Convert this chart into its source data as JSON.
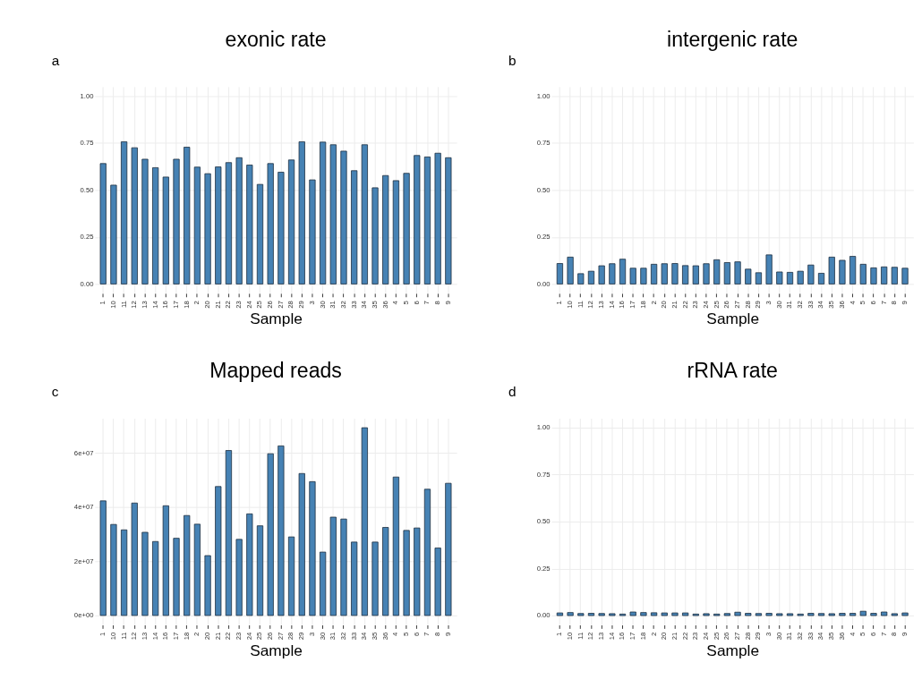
{
  "chart_data": [
    {
      "type": "bar",
      "title": "exonic rate",
      "xlabel": "Sample",
      "annotations": [
        "a"
      ],
      "grid": true,
      "color": "#4682b4",
      "categories": [
        "1",
        "10",
        "11",
        "12",
        "13",
        "14",
        "16",
        "17",
        "18",
        "2",
        "20",
        "21",
        "22",
        "23",
        "24",
        "25",
        "26",
        "27",
        "28",
        "29",
        "3",
        "30",
        "31",
        "32",
        "33",
        "34",
        "35",
        "36",
        "4",
        "5",
        "6",
        "7",
        "8",
        "9"
      ],
      "values": [
        0.641,
        0.526,
        0.757,
        0.725,
        0.664,
        0.619,
        0.569,
        0.664,
        0.728,
        0.622,
        0.587,
        0.623,
        0.646,
        0.672,
        0.633,
        0.53,
        0.641,
        0.595,
        0.66,
        0.757,
        0.554,
        0.755,
        0.741,
        0.707,
        0.603,
        0.741,
        0.512,
        0.577,
        0.55,
        0.589,
        0.684,
        0.676,
        0.696,
        0.672
      ],
      "ylim": [
        -0.05,
        1.05
      ],
      "yticks": [
        {
          "value": 0,
          "label": "0.00"
        },
        {
          "value": 0.25,
          "label": "0.25"
        },
        {
          "value": 0.5,
          "label": "0.50"
        },
        {
          "value": 0.75,
          "label": "0.75"
        },
        {
          "value": 1,
          "label": "1.00"
        }
      ]
    },
    {
      "type": "bar",
      "title": "intergenic rate",
      "xlabel": "Sample",
      "annotations": [
        "b"
      ],
      "grid": true,
      "color": "#4682b4",
      "categories": [
        "1",
        "10",
        "11",
        "12",
        "13",
        "14",
        "16",
        "17",
        "18",
        "2",
        "20",
        "21",
        "22",
        "23",
        "24",
        "25",
        "26",
        "27",
        "28",
        "29",
        "3",
        "30",
        "31",
        "32",
        "33",
        "34",
        "35",
        "36",
        "4",
        "5",
        "6",
        "7",
        "8",
        "9"
      ],
      "values": [
        0.109,
        0.143,
        0.055,
        0.068,
        0.097,
        0.108,
        0.132,
        0.084,
        0.084,
        0.105,
        0.108,
        0.109,
        0.098,
        0.097,
        0.108,
        0.129,
        0.114,
        0.118,
        0.079,
        0.06,
        0.155,
        0.064,
        0.062,
        0.068,
        0.101,
        0.057,
        0.143,
        0.126,
        0.147,
        0.105,
        0.086,
        0.091,
        0.089,
        0.084
      ],
      "ylim": [
        -0.05,
        1.05
      ],
      "yticks": [
        {
          "value": 0,
          "label": "0.00"
        },
        {
          "value": 0.25,
          "label": "0.25"
        },
        {
          "value": 0.5,
          "label": "0.50"
        },
        {
          "value": 0.75,
          "label": "0.75"
        },
        {
          "value": 1,
          "label": "1.00"
        }
      ]
    },
    {
      "type": "bar",
      "title": "Mapped reads",
      "xlabel": "Sample",
      "annotations": [
        "c"
      ],
      "grid": true,
      "color": "#4682b4",
      "categories": [
        "1",
        "10",
        "11",
        "12",
        "13",
        "14",
        "16",
        "17",
        "18",
        "2",
        "20",
        "21",
        "22",
        "23",
        "24",
        "25",
        "26",
        "27",
        "28",
        "29",
        "3",
        "30",
        "31",
        "32",
        "33",
        "34",
        "35",
        "36",
        "4",
        "5",
        "6",
        "7",
        "8",
        "9"
      ],
      "values": [
        42300000,
        33600000,
        31600000,
        41500000,
        30700000,
        27300000,
        40500000,
        28500000,
        36900000,
        33700000,
        22100000,
        47600000,
        60900000,
        28100000,
        37500000,
        33100000,
        59700000,
        62600000,
        29000000,
        52400000,
        49400000,
        23400000,
        36300000,
        35600000,
        27100000,
        69300000,
        27100000,
        32500000,
        51100000,
        31400000,
        32300000,
        46600000,
        24900000,
        48800000
      ],
      "ylim": [
        -3500000,
        72800000
      ],
      "yticks": [
        {
          "value": 0,
          "label": "0e+00"
        },
        {
          "value": 20000000,
          "label": "2e+07"
        },
        {
          "value": 40000000,
          "label": "4e+07"
        },
        {
          "value": 60000000,
          "label": "6e+07"
        }
      ]
    },
    {
      "type": "bar",
      "title": "rRNA rate",
      "xlabel": "Sample",
      "annotations": [
        "d"
      ],
      "grid": true,
      "color": "#4682b4",
      "categories": [
        "1",
        "10",
        "11",
        "12",
        "13",
        "14",
        "16",
        "17",
        "18",
        "2",
        "20",
        "21",
        "22",
        "23",
        "24",
        "25",
        "26",
        "27",
        "28",
        "29",
        "3",
        "30",
        "31",
        "32",
        "33",
        "34",
        "35",
        "36",
        "4",
        "5",
        "6",
        "7",
        "8",
        "9"
      ],
      "values": [
        0.014,
        0.016,
        0.011,
        0.012,
        0.011,
        0.01,
        0.008,
        0.019,
        0.016,
        0.015,
        0.014,
        0.014,
        0.014,
        0.008,
        0.01,
        0.008,
        0.011,
        0.018,
        0.012,
        0.011,
        0.012,
        0.01,
        0.01,
        0.008,
        0.012,
        0.011,
        0.01,
        0.012,
        0.012,
        0.023,
        0.012,
        0.019,
        0.01,
        0.014
      ],
      "ylim": [
        -0.05,
        1.05
      ],
      "yticks": [
        {
          "value": 0,
          "label": "0.00"
        },
        {
          "value": 0.25,
          "label": "0.25"
        },
        {
          "value": 0.5,
          "label": "0.50"
        },
        {
          "value": 0.75,
          "label": "0.75"
        },
        {
          "value": 1,
          "label": "1.00"
        }
      ]
    }
  ]
}
